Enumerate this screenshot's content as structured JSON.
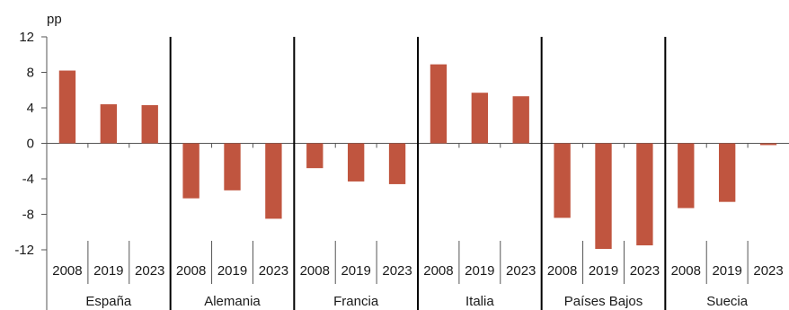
{
  "chart_data": {
    "type": "bar",
    "ylabel": "pp",
    "ylim": [
      -12,
      12
    ],
    "yticks": [
      12,
      8,
      4,
      0,
      -4,
      -8,
      -12
    ],
    "grid": false,
    "legend": "none",
    "bar_color": "#C0553F",
    "groups": [
      {
        "name": "España",
        "x": [
          "2008",
          "2019",
          "2023"
        ],
        "values": [
          8.2,
          4.4,
          4.3
        ]
      },
      {
        "name": "Alemania",
        "x": [
          "2008",
          "2019",
          "2023"
        ],
        "values": [
          -6.2,
          -5.3,
          -8.5
        ]
      },
      {
        "name": "Francia",
        "x": [
          "2008",
          "2019",
          "2023"
        ],
        "values": [
          -2.8,
          -4.3,
          -4.6
        ]
      },
      {
        "name": "Italia",
        "x": [
          "2008",
          "2019",
          "2023"
        ],
        "values": [
          8.9,
          5.7,
          5.3
        ]
      },
      {
        "name": "Países Bajos",
        "x": [
          "2008",
          "2019",
          "2023"
        ],
        "values": [
          -8.4,
          -11.9,
          -11.5
        ]
      },
      {
        "name": "Suecia",
        "x": [
          "2008",
          "2019",
          "2023"
        ],
        "values": [
          -7.3,
          -6.6,
          -0.2
        ]
      }
    ]
  }
}
